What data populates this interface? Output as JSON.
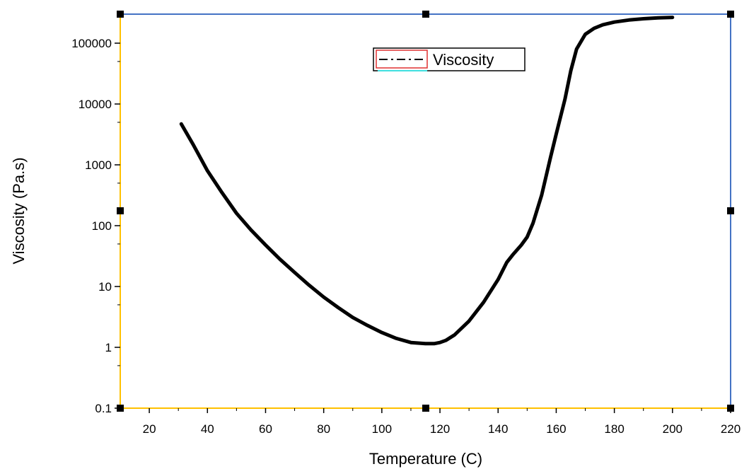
{
  "colors": {
    "background": "#ffffff",
    "axis_left_bottom": "#ffc000",
    "axis_right_top": "#4472c4",
    "series": "#000000",
    "legend_box": "#000000",
    "legend_accent_red": "#e03030",
    "legend_accent_cyan": "#40e0e0",
    "handle": "#000000"
  },
  "chart_data": {
    "type": "line",
    "title": "",
    "xlabel": "Temperature (C)",
    "ylabel": "Viscosity (Pa.s)",
    "xlim": [
      10,
      220
    ],
    "ylim": [
      0.1,
      300000
    ],
    "yscale": "log",
    "x_ticks": [
      20,
      40,
      60,
      80,
      100,
      120,
      140,
      160,
      180,
      200,
      220
    ],
    "y_ticks": [
      0.1,
      1,
      10,
      100,
      1000,
      10000,
      100000
    ],
    "y_tick_labels": [
      "0.1",
      "1",
      "10",
      "100",
      "1000",
      "10000",
      "100000"
    ],
    "grid": false,
    "legend": {
      "position": "top-center",
      "entries": [
        "Viscosity"
      ]
    },
    "series": [
      {
        "name": "Viscosity",
        "x": [
          31,
          35,
          40,
          45,
          50,
          55,
          60,
          65,
          70,
          75,
          80,
          85,
          90,
          95,
          100,
          105,
          110,
          115,
          118,
          120,
          122,
          125,
          130,
          135,
          140,
          143,
          145,
          148,
          150,
          152,
          155,
          158,
          160,
          163,
          165,
          167,
          170,
          173,
          176,
          180,
          185,
          190,
          195,
          200
        ],
        "y": [
          4700,
          2200,
          800,
          350,
          160,
          85,
          48,
          28,
          17,
          10.5,
          6.7,
          4.5,
          3.1,
          2.3,
          1.75,
          1.4,
          1.2,
          1.15,
          1.15,
          1.2,
          1.3,
          1.6,
          2.7,
          5.5,
          13,
          25,
          33,
          48,
          65,
          110,
          320,
          1300,
          3200,
          12000,
          35000,
          80000,
          140000,
          175000,
          200000,
          222000,
          240000,
          252000,
          260000,
          265000
        ]
      }
    ]
  }
}
